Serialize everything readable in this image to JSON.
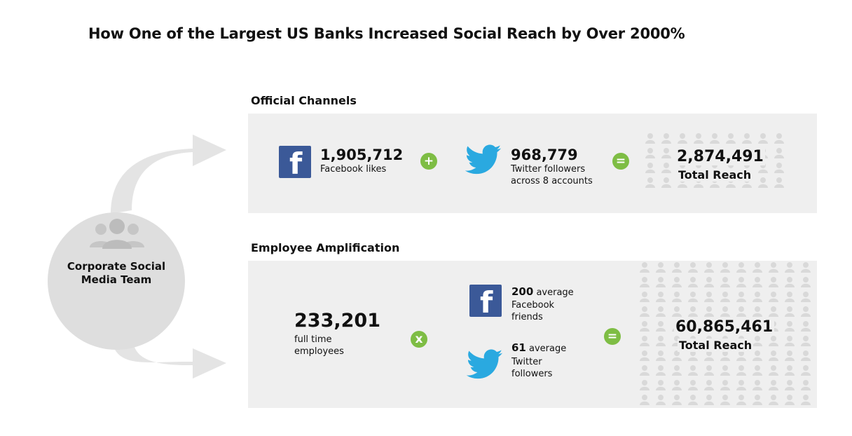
{
  "title": "How One of the Largest US Banks Increased Social Reach by Over 2000%",
  "source": {
    "label": "Corporate Social Media Team",
    "icon": "people-group-icon"
  },
  "official": {
    "heading": "Official Channels",
    "facebook": {
      "value": "1,905,712",
      "label": "Facebook likes",
      "icon": "facebook-icon"
    },
    "operator1": "+",
    "twitter": {
      "value": "968,779",
      "label_line1": "Twitter followers",
      "label_line2": "across 8 accounts",
      "icon": "twitter-bird-icon"
    },
    "operator2": "=",
    "reach": {
      "value": "2,874,491",
      "label": "Total Reach"
    }
  },
  "employee": {
    "heading": "Employee Amplification",
    "employees": {
      "value": "233,201",
      "label_line1": "full time",
      "label_line2": "employees"
    },
    "operator1": "x",
    "facebook": {
      "value": "200",
      "suffix": "average",
      "label_line1": "Facebook",
      "label_line2": "friends",
      "icon": "facebook-icon"
    },
    "twitter": {
      "value": "61",
      "suffix": "average",
      "label_line1": "Twitter",
      "label_line2": "followers",
      "icon": "twitter-bird-icon"
    },
    "operator2": "=",
    "reach": {
      "value": "60,865,461",
      "label": "Total Reach"
    }
  },
  "colors": {
    "panel": "#efefef",
    "circle": "#dedede",
    "arrow": "#e4e4e4",
    "operator": "#7ebd44",
    "facebook": "#3b5998",
    "twitter": "#2aa9e0",
    "people": "#d9d9d9"
  }
}
